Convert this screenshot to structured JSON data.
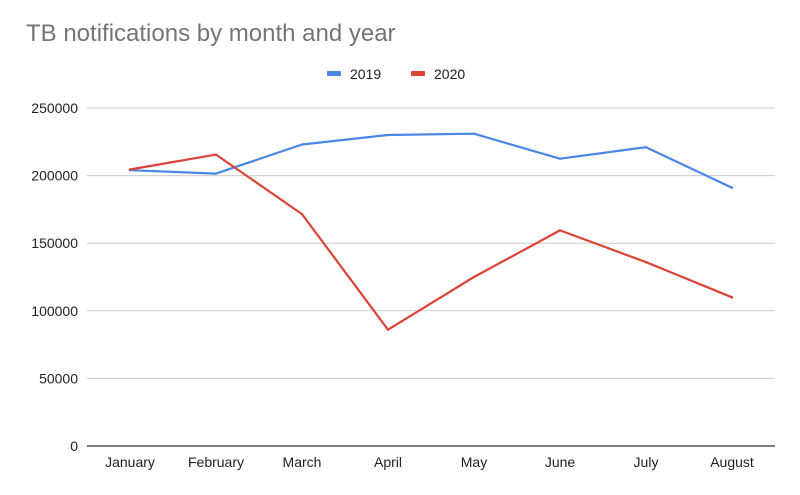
{
  "chart_data": {
    "type": "line",
    "title": "TB notifications by month and year",
    "xlabel": "",
    "ylabel": "",
    "categories": [
      "January",
      "February",
      "March",
      "April",
      "May",
      "June",
      "July",
      "August"
    ],
    "ylim": [
      0,
      250000
    ],
    "yticks": [
      "0",
      "50000",
      "100000",
      "150000",
      "200000",
      "250000"
    ],
    "grid": true,
    "legend_position": "top",
    "series": [
      {
        "name": "2019",
        "color": "#4a86e8",
        "values": [
          204000,
          201500,
          223000,
          230000,
          231000,
          212500,
          221000,
          191000
        ]
      },
      {
        "name": "2020",
        "color": "#db4437",
        "values": [
          204500,
          215500,
          171500,
          86000,
          125000,
          159500,
          136000,
          110000
        ]
      }
    ]
  }
}
